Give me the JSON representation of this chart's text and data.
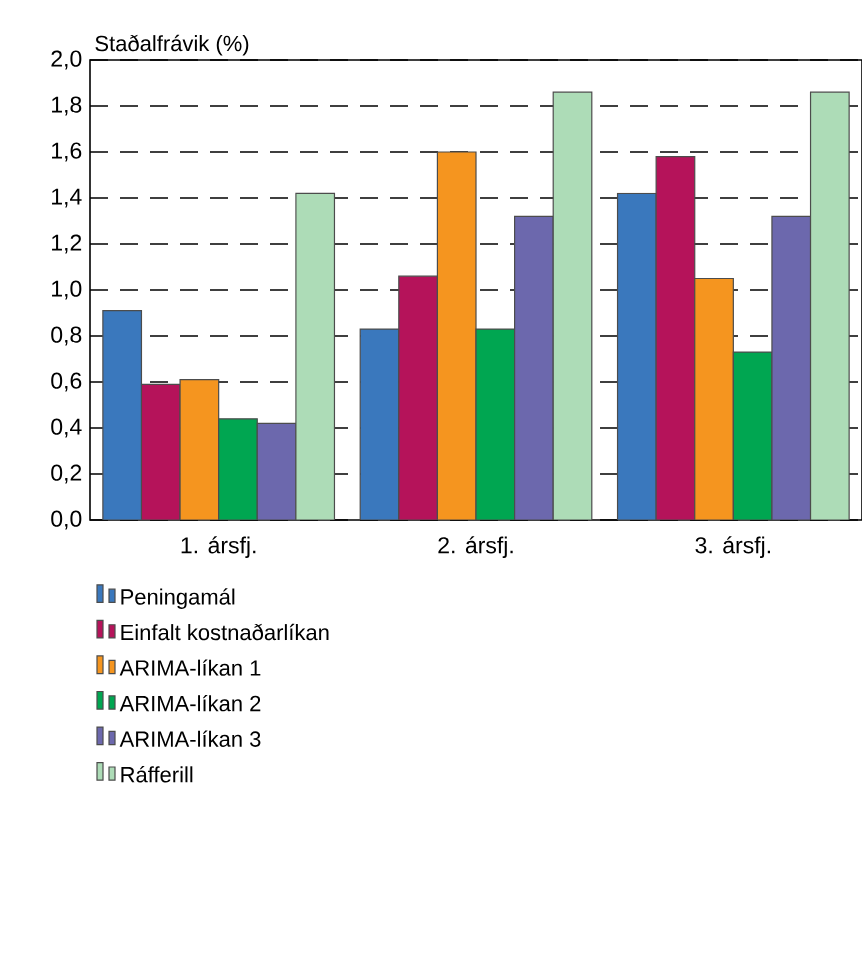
{
  "chart_data": {
    "type": "bar",
    "ylabel": "Staðalfrávik (%)",
    "categories": [
      "1. ársfj.",
      "2. ársfj.",
      "3. ársfj."
    ],
    "series": [
      {
        "name": "Peningamál",
        "color": "#3a78bd",
        "values": [
          0.91,
          0.83,
          1.42
        ]
      },
      {
        "name": "Einfalt kostnaðarlíkan",
        "color": "#b5135a",
        "values": [
          0.59,
          1.06,
          1.58
        ]
      },
      {
        "name": "ARIMA-líkan 1",
        "color": "#f5951f",
        "values": [
          0.61,
          1.6,
          1.05
        ]
      },
      {
        "name": "ARIMA-líkan 2",
        "color": "#00a651",
        "values": [
          0.44,
          0.83,
          0.73
        ]
      },
      {
        "name": "ARIMA-líkan 3",
        "color": "#6c68ad",
        "values": [
          0.42,
          1.32,
          1.32
        ]
      },
      {
        "name": "Ráfferill",
        "color": "#addcb7",
        "values": [
          1.42,
          1.86,
          1.86
        ]
      }
    ],
    "ylim": [
      0,
      2
    ],
    "yticks": [
      {
        "value": 0,
        "label": "0,0"
      },
      {
        "value": 0.2,
        "label": "0,2"
      },
      {
        "value": 0.4,
        "label": "0,4"
      },
      {
        "value": 0.6,
        "label": "0,6"
      },
      {
        "value": 0.8,
        "label": "0,8"
      },
      {
        "value": 1,
        "label": "1,0"
      },
      {
        "value": 1.2,
        "label": "1,2"
      },
      {
        "value": 1.4,
        "label": "1,4"
      },
      {
        "value": 1.6,
        "label": "1,6"
      },
      {
        "value": 1.8,
        "label": "1,8"
      },
      {
        "value": 2,
        "label": "2,0"
      }
    ],
    "grid": "y",
    "legend": "bottom"
  }
}
